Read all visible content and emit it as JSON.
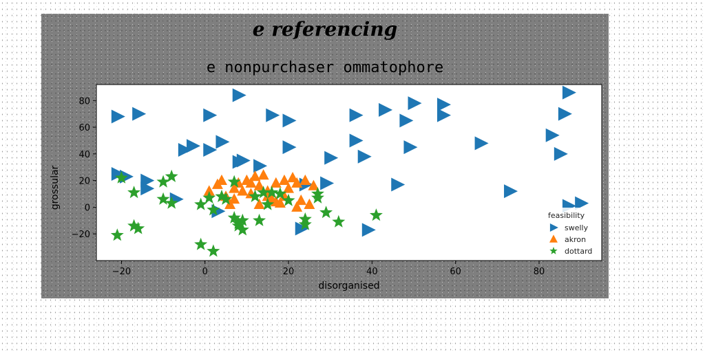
{
  "chart_data": {
    "type": "scatter",
    "suptitle": "e referencing",
    "title": "e nonpurchaser ommatophore",
    "xlabel": "disorganised",
    "ylabel": "grossular",
    "xlim": [
      -26,
      95
    ],
    "ylim": [
      -40,
      92
    ],
    "xticks": [
      -20,
      0,
      20,
      40,
      60,
      80
    ],
    "yticks": [
      -20,
      0,
      20,
      40,
      60,
      80
    ],
    "grid": false,
    "legend": {
      "title": "feasibility",
      "position": "lower-right"
    },
    "series": [
      {
        "name": "swelly",
        "marker": "triangle-right",
        "color": "#1f77b4",
        "points": [
          [
            -21,
            68
          ],
          [
            -16,
            70
          ],
          [
            -21,
            25
          ],
          [
            -19,
            23
          ],
          [
            -14,
            20
          ],
          [
            -14,
            14
          ],
          [
            -7,
            6
          ],
          [
            -5,
            43
          ],
          [
            -3,
            46
          ],
          [
            1,
            69
          ],
          [
            1,
            43
          ],
          [
            3,
            -3
          ],
          [
            4,
            49
          ],
          [
            8,
            84
          ],
          [
            8,
            34
          ],
          [
            9,
            35
          ],
          [
            13,
            31
          ],
          [
            16,
            69
          ],
          [
            20,
            65
          ],
          [
            20,
            45
          ],
          [
            23,
            -16
          ],
          [
            24,
            17
          ],
          [
            29,
            18
          ],
          [
            30,
            37
          ],
          [
            36,
            69
          ],
          [
            36,
            50
          ],
          [
            38,
            38
          ],
          [
            43,
            73
          ],
          [
            46,
            17
          ],
          [
            48,
            65
          ],
          [
            49,
            45
          ],
          [
            50,
            78
          ],
          [
            57,
            77
          ],
          [
            57,
            69
          ],
          [
            66,
            48
          ],
          [
            73,
            12
          ],
          [
            83,
            54
          ],
          [
            85,
            40
          ],
          [
            86,
            70
          ],
          [
            87,
            86
          ],
          [
            87,
            1
          ],
          [
            90,
            3
          ],
          [
            39,
            -17
          ]
        ]
      },
      {
        "name": "akron",
        "marker": "triangle",
        "color": "#ff7f0e",
        "points": [
          [
            1,
            12
          ],
          [
            3,
            17
          ],
          [
            4,
            20
          ],
          [
            5,
            8
          ],
          [
            6,
            2
          ],
          [
            7,
            14
          ],
          [
            8,
            18
          ],
          [
            9,
            12
          ],
          [
            10,
            20
          ],
          [
            11,
            10
          ],
          [
            12,
            23
          ],
          [
            13,
            2
          ],
          [
            13,
            16
          ],
          [
            14,
            24
          ],
          [
            15,
            12
          ],
          [
            16,
            6
          ],
          [
            17,
            18
          ],
          [
            18,
            3
          ],
          [
            19,
            8
          ],
          [
            20,
            14
          ],
          [
            21,
            22
          ],
          [
            22,
            0
          ],
          [
            22,
            18
          ],
          [
            23,
            5
          ],
          [
            24,
            20
          ],
          [
            25,
            2
          ],
          [
            26,
            16
          ],
          [
            17,
            4
          ],
          [
            7,
            6
          ],
          [
            11,
            18
          ],
          [
            19,
            20
          ],
          [
            15,
            8
          ]
        ]
      },
      {
        "name": "dottard",
        "marker": "star",
        "color": "#2ca02c",
        "points": [
          [
            -21,
            -21
          ],
          [
            -20,
            22
          ],
          [
            -17,
            11
          ],
          [
            -17,
            -14
          ],
          [
            -16,
            -16
          ],
          [
            -10,
            6
          ],
          [
            -10,
            19
          ],
          [
            -8,
            23
          ],
          [
            -8,
            3
          ],
          [
            -1,
            -28
          ],
          [
            -1,
            2
          ],
          [
            1,
            7
          ],
          [
            2,
            -33
          ],
          [
            4,
            8
          ],
          [
            5,
            6
          ],
          [
            7,
            -8
          ],
          [
            7,
            19
          ],
          [
            8,
            -12
          ],
          [
            8,
            -14
          ],
          [
            9,
            -17
          ],
          [
            9,
            -10
          ],
          [
            12,
            8
          ],
          [
            13,
            -10
          ],
          [
            14,
            11
          ],
          [
            15,
            2
          ],
          [
            16,
            11
          ],
          [
            18,
            10
          ],
          [
            20,
            5
          ],
          [
            24,
            -9
          ],
          [
            24,
            -13
          ],
          [
            27,
            10
          ],
          [
            27,
            7
          ],
          [
            29,
            -4
          ],
          [
            32,
            -11
          ],
          [
            41,
            -6
          ],
          [
            2,
            -2
          ]
        ]
      }
    ]
  }
}
